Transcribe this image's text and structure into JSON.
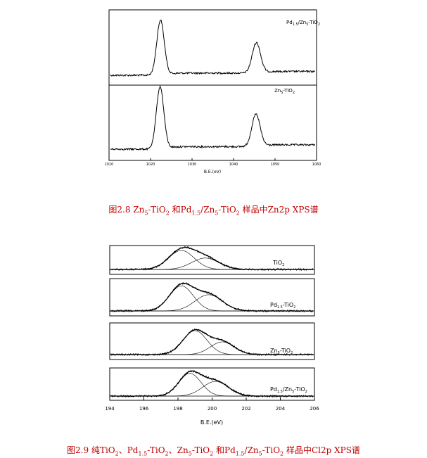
{
  "figure1": {
    "caption": {
      "prefix": "图2.8 Zn",
      "s1": "5",
      "t1": "-TiO",
      "s2": "2",
      "t2": " 和Pd",
      "s3": "1.5",
      "t3": "/Zn",
      "s4": "5",
      "t4": "-TiO",
      "s5": "2",
      "t5": " 样品中Zn2p XPS谱"
    },
    "xlabel": "B.E.(eV)",
    "xticks": [
      "1010",
      "1020",
      "1030",
      "1040",
      "1050",
      "1060"
    ],
    "panels": [
      {
        "label": "Pd1.5/Zn5-TiO2"
      },
      {
        "label": "Zn5-TiO2"
      }
    ]
  },
  "figure2": {
    "caption": {
      "prefix": "图2.9  纯TiO",
      "s1": "2",
      "t1": "、Pd",
      "s2": "1.5",
      "t2": "-TiO",
      "s3": "2",
      "t3": "、Zn",
      "s4": "5",
      "t4": "-TiO",
      "s5": "2",
      "t5": " 和Pd",
      "s6": "1.5",
      "t6": "/Zn",
      "s7": "5",
      "t7": "-TiO",
      "s8": "2",
      "t8": " 样品中Cl2p XPS谱"
    },
    "xlabel": "B.E.(eV)",
    "xticks": [
      "194",
      "196",
      "198",
      "200",
      "202",
      "204",
      "206"
    ],
    "panels": [
      {
        "label": "TiO2"
      },
      {
        "label": "Pd1.5-TiO2"
      },
      {
        "label": "Zn5-TiO2"
      },
      {
        "label": "Pd1.5/Zn5-TiO2"
      }
    ]
  },
  "chart_data": [
    {
      "type": "line",
      "xlabel": "B.E.(eV)",
      "xlim": [
        1010,
        1060
      ],
      "xticks": [
        1010,
        1020,
        1030,
        1040,
        1050,
        1060
      ],
      "series": [
        {
          "name": "Pd1.5/Zn5-TiO2",
          "peaks": [
            {
              "x": 1022.4,
              "height": 1.0,
              "width": 0.9
            },
            {
              "x": 1045.5,
              "height": 0.55,
              "width": 1.0
            }
          ]
        },
        {
          "name": "Zn5-TiO2",
          "peaks": [
            {
              "x": 1022.3,
              "height": 1.0,
              "width": 0.9
            },
            {
              "x": 1045.4,
              "height": 0.52,
              "width": 1.0
            }
          ]
        }
      ]
    },
    {
      "type": "line",
      "xlabel": "B.E.(eV)",
      "xlim": [
        194,
        206
      ],
      "xticks": [
        194,
        196,
        198,
        200,
        202,
        204,
        206
      ],
      "series": [
        {
          "name": "TiO2",
          "components": [
            {
              "center": 198.2,
              "height": 0.75,
              "width": 0.75
            },
            {
              "center": 199.6,
              "height": 0.45,
              "width": 0.8
            }
          ]
        },
        {
          "name": "Pd1.5-TiO2",
          "components": [
            {
              "center": 198.2,
              "height": 0.85,
              "width": 0.7
            },
            {
              "center": 199.8,
              "height": 0.55,
              "width": 0.8
            }
          ]
        },
        {
          "name": "Zn5-TiO2",
          "components": [
            {
              "center": 199.0,
              "height": 0.85,
              "width": 0.7
            },
            {
              "center": 200.6,
              "height": 0.45,
              "width": 0.7
            }
          ]
        },
        {
          "name": "Pd1.5/Zn5-TiO2",
          "components": [
            {
              "center": 198.7,
              "height": 0.85,
              "width": 0.65
            },
            {
              "center": 200.2,
              "height": 0.55,
              "width": 0.75
            }
          ]
        }
      ]
    }
  ]
}
